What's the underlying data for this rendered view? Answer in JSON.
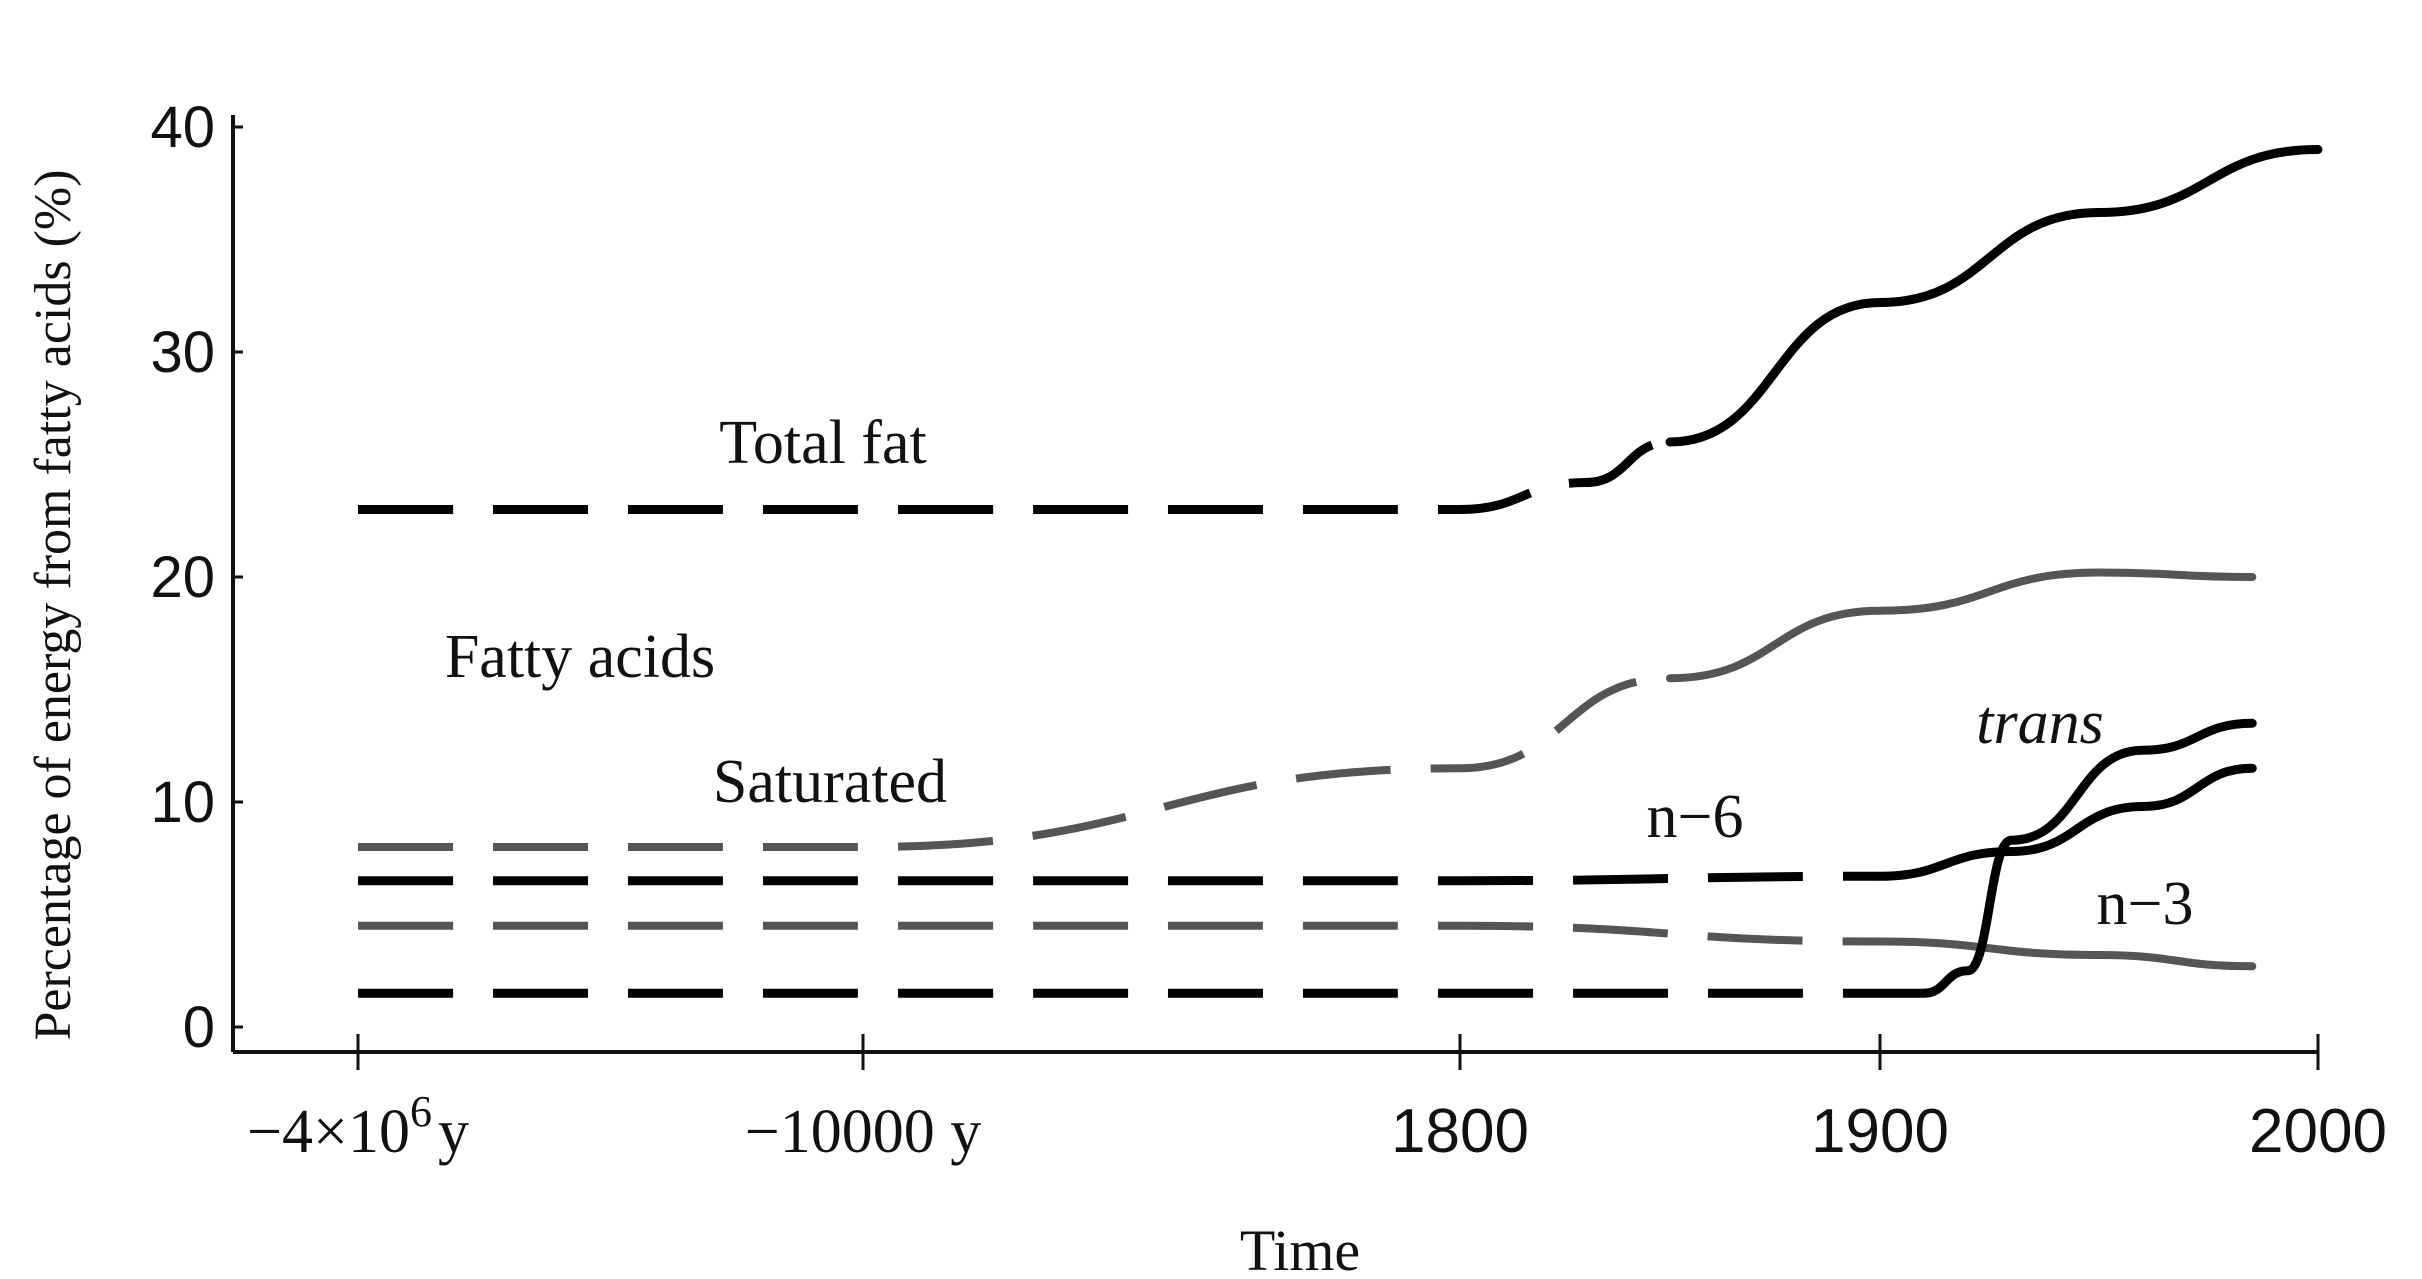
{
  "chart_data": {
    "type": "line",
    "title": "",
    "xlabel": "Time",
    "ylabel": "Percentage of energy from fatty acids (%)",
    "ylim": [
      0,
      40
    ],
    "yticks": [
      0,
      10,
      20,
      30,
      40
    ],
    "xticks": [
      {
        "label_main": "−4×10",
        "label_sup": "6",
        "label_end": "y",
        "x": "-4x10^6 y"
      },
      {
        "label_main": "−10000 y",
        "label_sup": "",
        "label_end": "",
        "x": "-10000 y"
      },
      {
        "label_main": "1800",
        "label_sup": "",
        "label_end": "",
        "x": 1800
      },
      {
        "label_main": "1900",
        "label_sup": "",
        "label_end": "",
        "x": 1900
      },
      {
        "label_main": "2000",
        "label_sup": "",
        "label_end": "",
        "x": 2000
      }
    ],
    "x_scale": "nonlinear (prehistoric period compressed)",
    "grid": false,
    "legend": "none (series labeled directly on plot)",
    "annotations": [
      {
        "text": "Total fat",
        "style": "normal"
      },
      {
        "text": "Fatty acids",
        "style": "normal"
      },
      {
        "text": "Saturated",
        "style": "normal"
      },
      {
        "text": "trans",
        "style": "italic"
      },
      {
        "text": "n−6",
        "style": "normal"
      },
      {
        "text": "n−3",
        "style": "normal"
      }
    ],
    "series": [
      {
        "name": "Total fat",
        "color": "#000000",
        "points": [
          {
            "x": "-4x10^6 y",
            "y": 23
          },
          {
            "x": "-10000 y",
            "y": 23
          },
          {
            "x": 1800,
            "y": 23
          },
          {
            "x": 1830,
            "y": 24.2
          },
          {
            "x": 1850,
            "y": 26
          },
          {
            "x": 1900,
            "y": 32.2
          },
          {
            "x": 1950,
            "y": 36.2
          },
          {
            "x": 2000,
            "y": 39
          }
        ]
      },
      {
        "name": "Saturated",
        "color": "#555555",
        "points": [
          {
            "x": "-4x10^6 y",
            "y": 8
          },
          {
            "x": "-10000 y",
            "y": 8
          },
          {
            "x": 1800,
            "y": 11.5
          },
          {
            "x": 1850,
            "y": 15.5
          },
          {
            "x": 1900,
            "y": 18.5
          },
          {
            "x": 1950,
            "y": 20.2
          },
          {
            "x": 1985,
            "y": 20
          }
        ]
      },
      {
        "name": "n−6",
        "color": "#000000",
        "points": [
          {
            "x": "-4x10^6 y",
            "y": 6.5
          },
          {
            "x": "-10000 y",
            "y": 6.5
          },
          {
            "x": 1800,
            "y": 6.5
          },
          {
            "x": 1900,
            "y": 6.7
          },
          {
            "x": 1930,
            "y": 7.8
          },
          {
            "x": 1960,
            "y": 9.8
          },
          {
            "x": 1985,
            "y": 11.5
          }
        ]
      },
      {
        "name": "n−3",
        "color": "#555555",
        "points": [
          {
            "x": "-4x10^6 y",
            "y": 4.5
          },
          {
            "x": "-10000 y",
            "y": 4.5
          },
          {
            "x": 1800,
            "y": 4.5
          },
          {
            "x": 1900,
            "y": 3.8
          },
          {
            "x": 1950,
            "y": 3.2
          },
          {
            "x": 1985,
            "y": 2.7
          }
        ]
      },
      {
        "name": "trans",
        "color": "#000000",
        "points": [
          {
            "x": "-4x10^6 y",
            "y": 1.5
          },
          {
            "x": "-10000 y",
            "y": 1.5
          },
          {
            "x": 1800,
            "y": 1.5
          },
          {
            "x": 1910,
            "y": 1.5
          },
          {
            "x": 1920,
            "y": 2.5
          },
          {
            "x": 1930,
            "y": 8.3
          },
          {
            "x": 1960,
            "y": 12.3
          },
          {
            "x": 1985,
            "y": 13.5
          }
        ]
      }
    ]
  }
}
